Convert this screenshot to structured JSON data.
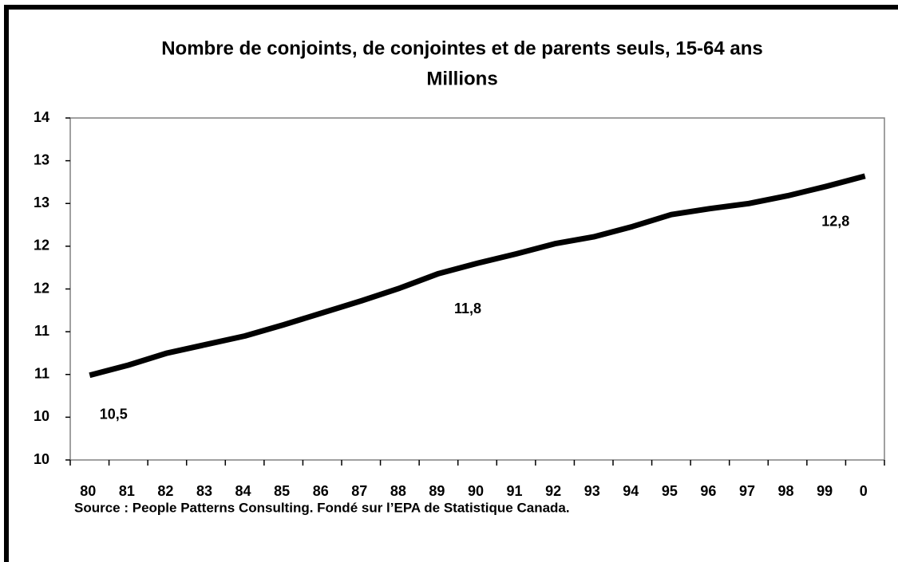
{
  "chart_data": {
    "type": "line",
    "title": "Nombre de conjoints, de conjointes et de parents seuls, 15-64 ans",
    "subtitle": "Millions",
    "source": "Source : People Patterns Consulting.  Fondé sur l’EPA de Statistique Canada.",
    "categories": [
      "80",
      "81",
      "82",
      "83",
      "84",
      "85",
      "86",
      "87",
      "88",
      "89",
      "90",
      "91",
      "92",
      "93",
      "94",
      "95",
      "96",
      "97",
      "98",
      "99",
      "0"
    ],
    "series": [
      {
        "name": "Nombre",
        "color": "#000000",
        "values": [
          10.49,
          10.61,
          10.75,
          10.85,
          10.95,
          11.08,
          11.22,
          11.36,
          11.51,
          11.68,
          11.8,
          11.91,
          12.03,
          12.11,
          12.23,
          12.37,
          12.44,
          12.5,
          12.59,
          12.7,
          12.82
        ],
        "value_labels": [
          "10,5",
          null,
          null,
          null,
          null,
          null,
          null,
          null,
          null,
          null,
          "11,8",
          null,
          null,
          null,
          null,
          null,
          null,
          null,
          null,
          null,
          "12,8"
        ]
      }
    ],
    "ylim": [
      9.5,
      13.5
    ],
    "yticks": [
      {
        "value": 9.5,
        "label": "10"
      },
      10,
      {
        "value": 10.5,
        "label": "11"
      },
      11,
      {
        "value": 11.5,
        "label": "12"
      },
      12,
      {
        "value": 12.5,
        "label": "13"
      },
      13,
      {
        "value": 13.5,
        "label": "14"
      }
    ],
    "grid": false
  }
}
